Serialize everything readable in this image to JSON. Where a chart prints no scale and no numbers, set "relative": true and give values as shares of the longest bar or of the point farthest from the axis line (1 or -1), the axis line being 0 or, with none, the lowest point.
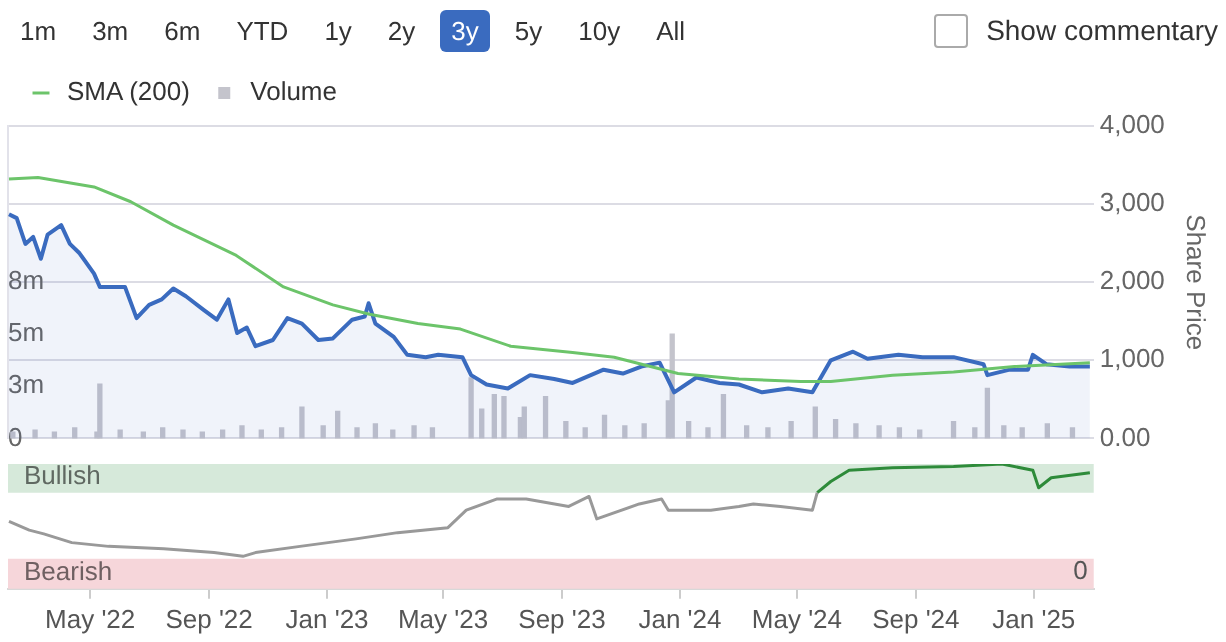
{
  "chart_data": [
    {
      "type": "other",
      "annotations": [
        "1m",
        "3m",
        "6m",
        "YTD",
        "1y",
        "2y",
        "3y",
        "5y",
        "10y",
        "All",
        "Show commentary"
      ]
    },
    {
      "type": "line",
      "ylabel": "Share Price",
      "xlim": [
        "2022-02-05",
        "2025-03-04"
      ],
      "ylim": [
        0,
        4000
      ],
      "yticks": [
        {
          "value": 0,
          "label": "0.00"
        },
        {
          "value": 1000,
          "label": "1,000"
        },
        {
          "value": 2000,
          "label": "2,000"
        },
        {
          "value": 3000,
          "label": "3,000"
        },
        {
          "value": 4000,
          "label": "4,000"
        }
      ],
      "y2lim": [
        0,
        15
      ],
      "y2ticks": [
        {
          "value": 0,
          "label": "0"
        },
        {
          "value": 2.5,
          "label": "3m"
        },
        {
          "value": 5,
          "label": "5m"
        },
        {
          "value": 7.5,
          "label": "8m"
        }
      ],
      "grid": "y",
      "legend": "top left",
      "marker": "none",
      "tick_labels": "y",
      "series": [
        {
          "type": "bar",
          "name": "Volume",
          "color": "#c4c4cc",
          "axis": "y2",
          "x": [
            "2022-02-10",
            "2022-03-05",
            "2022-03-25",
            "2022-04-15",
            "2022-05-08",
            "2022-05-11",
            "2022-06-01",
            "2022-06-25",
            "2022-07-15",
            "2022-08-05",
            "2022-08-25",
            "2022-09-15",
            "2022-10-05",
            "2022-10-25",
            "2022-11-15",
            "2022-12-06",
            "2022-12-28",
            "2023-01-12",
            "2023-02-01",
            "2023-02-20",
            "2023-03-10",
            "2023-04-01",
            "2023-04-20",
            "2023-05-30",
            "2023-06-10",
            "2023-06-23",
            "2023-07-03",
            "2023-07-20",
            "2023-07-24",
            "2023-08-15",
            "2023-09-05",
            "2023-09-25",
            "2023-10-15",
            "2023-11-05",
            "2023-11-25",
            "2023-12-20",
            "2023-12-24",
            "2024-01-10",
            "2024-01-30",
            "2024-02-15",
            "2024-03-10",
            "2024-04-01",
            "2024-04-25",
            "2024-05-20",
            "2024-06-10",
            "2024-07-01",
            "2024-07-25",
            "2024-08-15",
            "2024-09-05",
            "2024-10-10",
            "2024-11-01",
            "2024-11-14",
            "2024-12-01",
            "2024-12-20",
            "2025-01-15",
            "2025-02-10"
          ],
          "values": [
            0.3,
            0.4,
            0.3,
            0.5,
            0.3,
            2.6,
            0.4,
            0.3,
            0.5,
            0.4,
            0.3,
            0.4,
            0.6,
            0.4,
            0.5,
            1.5,
            0.6,
            1.3,
            0.5,
            0.7,
            0.4,
            0.6,
            0.5,
            2.9,
            1.4,
            2.1,
            2.0,
            1.0,
            1.5,
            2.0,
            0.8,
            0.5,
            1.1,
            0.6,
            0.7,
            1.8,
            5.0,
            0.8,
            0.5,
            2.1,
            0.6,
            0.5,
            0.8,
            1.5,
            0.9,
            0.7,
            0.6,
            0.5,
            0.4,
            0.8,
            0.5,
            2.4,
            0.6,
            0.5,
            0.7,
            0.5
          ]
        },
        {
          "type": "area",
          "color": "#3a6bbf",
          "x": [
            "2022-02-06",
            "2022-02-14",
            "2022-02-23",
            "2022-03-03",
            "2022-03-11",
            "2022-03-18",
            "2022-04-01",
            "2022-04-10",
            "2022-04-20",
            "2022-05-05",
            "2022-05-11",
            "2022-05-24",
            "2022-06-06",
            "2022-06-18",
            "2022-07-01",
            "2022-07-14",
            "2022-07-26",
            "2022-08-08",
            "2022-08-27",
            "2022-09-09",
            "2022-09-21",
            "2022-09-30",
            "2022-10-10",
            "2022-10-19",
            "2022-11-06",
            "2022-11-21",
            "2022-12-06",
            "2022-12-23",
            "2023-01-07",
            "2023-01-27",
            "2023-02-09",
            "2023-02-13",
            "2023-02-20",
            "2023-03-11",
            "2023-03-25",
            "2023-04-13",
            "2023-04-26",
            "2023-05-21",
            "2023-05-30",
            "2023-06-15",
            "2023-07-07",
            "2023-07-30",
            "2023-08-24",
            "2023-09-12",
            "2023-10-14",
            "2023-11-03",
            "2023-11-22",
            "2023-12-11",
            "2023-12-26",
            "2024-01-18",
            "2024-02-11",
            "2024-03-02",
            "2024-03-26",
            "2024-04-22",
            "2024-05-17",
            "2024-06-05",
            "2024-06-28",
            "2024-07-13",
            "2024-08-14",
            "2024-09-08",
            "2024-10-10",
            "2024-11-10",
            "2024-11-14",
            "2024-12-07",
            "2024-12-26",
            "2024-12-31",
            "2025-01-14",
            "2025-02-07",
            "2025-02-28"
          ],
          "values": [
            2870,
            2820,
            2490,
            2580,
            2300,
            2610,
            2730,
            2490,
            2370,
            2110,
            1940,
            1940,
            1940,
            1540,
            1710,
            1780,
            1920,
            1820,
            1640,
            1520,
            1780,
            1350,
            1420,
            1180,
            1260,
            1540,
            1470,
            1260,
            1280,
            1520,
            1560,
            1730,
            1470,
            1300,
            1070,
            1040,
            1070,
            1040,
            810,
            690,
            640,
            810,
            760,
            710,
            880,
            830,
            920,
            970,
            590,
            780,
            710,
            690,
            590,
            640,
            590,
            1000,
            1110,
            1020,
            1070,
            1040,
            1040,
            950,
            810,
            880,
            880,
            1070,
            950,
            920,
            920
          ]
        },
        {
          "type": "line",
          "name": "SMA (200)",
          "color": "#6cc46a",
          "x": [
            "2022-02-06",
            "2022-03-08",
            "2022-05-05",
            "2022-06-12",
            "2022-07-26",
            "2022-09-28",
            "2022-11-17",
            "2023-01-07",
            "2023-02-14",
            "2023-04-05",
            "2023-05-19",
            "2023-07-10",
            "2023-09-12",
            "2023-10-25",
            "2023-12-30",
            "2024-03-02",
            "2024-05-05",
            "2024-06-05",
            "2024-08-08",
            "2024-10-10",
            "2024-12-12",
            "2025-02-28"
          ],
          "values": [
            3320,
            3340,
            3220,
            3030,
            2730,
            2350,
            1940,
            1710,
            1590,
            1470,
            1400,
            1180,
            1100,
            1040,
            830,
            760,
            730,
            730,
            810,
            850,
            920,
            970
          ]
        }
      ]
    },
    {
      "type": "line",
      "relative": true,
      "xlim": [
        "2022-02-05",
        "2025-03-04"
      ],
      "xticks": [
        {
          "value": "2022-05-01",
          "label": "May '22"
        },
        {
          "value": "2022-09-01",
          "label": "Sep '22"
        },
        {
          "value": "2023-01-01",
          "label": "Jan '23"
        },
        {
          "value": "2023-05-01",
          "label": "May '23"
        },
        {
          "value": "2023-09-01",
          "label": "Sep '23"
        },
        {
          "value": "2024-01-01",
          "label": "Jan '24"
        },
        {
          "value": "2024-05-01",
          "label": "May '24"
        },
        {
          "value": "2024-09-01",
          "label": "Sep '24"
        },
        {
          "value": "2025-01-01",
          "label": "Jan '25"
        }
      ],
      "tick_labels": "x",
      "marker": "none",
      "annotations": [
        "0"
      ],
      "bands": [
        {
          "axis": "y",
          "from": 0.77,
          "to": 1,
          "label": "Bullish",
          "color": "#d6e9da"
        },
        {
          "axis": "y",
          "from": 0,
          "to": 0.24,
          "label": "Bearish",
          "color": "#f6d6da"
        }
      ],
      "series": [
        {
          "color": "#999999",
          "x": [
            "2022-02-06",
            "2022-02-27",
            "2022-03-14",
            "2022-04-12",
            "2022-05-20",
            "2022-07-16",
            "2022-09-06",
            "2022-10-06",
            "2022-10-19",
            "2022-12-04",
            "2023-01-31",
            "2023-03-15",
            "2023-05-06",
            "2023-05-25",
            "2023-06-26",
            "2023-07-26",
            "2023-09-08",
            "2023-09-29",
            "2023-10-07",
            "2023-11-20",
            "2023-12-13",
            "2023-12-20",
            "2024-02-02",
            "2024-03-02",
            "2024-03-17",
            "2024-04-14",
            "2024-05-17",
            "2024-05-22"
          ],
          "values": [
            0.54,
            0.47,
            0.44,
            0.37,
            0.34,
            0.32,
            0.29,
            0.26,
            0.29,
            0.34,
            0.4,
            0.45,
            0.49,
            0.63,
            0.72,
            0.72,
            0.66,
            0.74,
            0.56,
            0.68,
            0.72,
            0.63,
            0.63,
            0.66,
            0.68,
            0.66,
            0.63,
            0.77
          ]
        },
        {
          "color": "#2e8b3a",
          "x": [
            "2024-05-22",
            "2024-06-05",
            "2024-06-24",
            "2024-08-08",
            "2024-10-10",
            "2024-11-29",
            "2024-12-31",
            "2025-01-06",
            "2025-01-19",
            "2025-02-28"
          ],
          "values": [
            0.77,
            0.86,
            0.95,
            0.97,
            0.98,
            1,
            0.95,
            0.81,
            0.89,
            0.93
          ]
        }
      ]
    }
  ]
}
